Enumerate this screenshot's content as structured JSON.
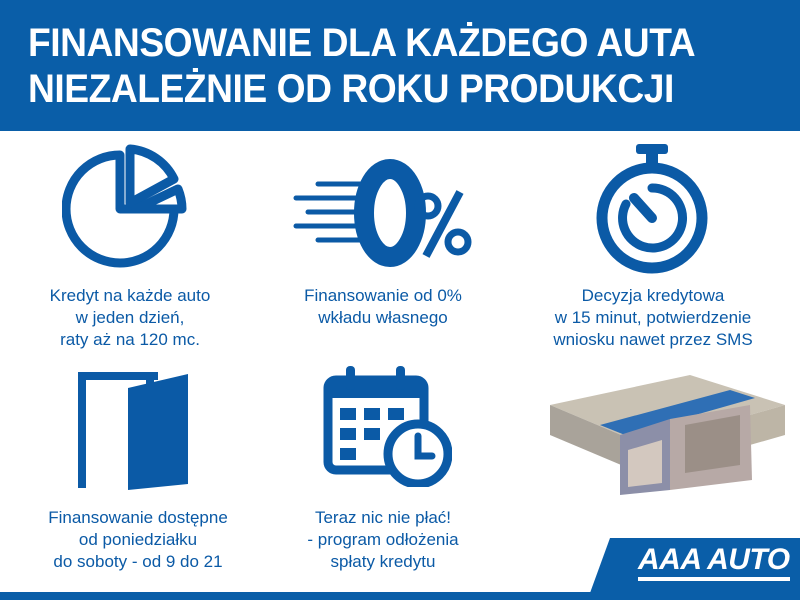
{
  "header": {
    "line1": "FINANSOWANIE DLA KAŻDEGO AUTA",
    "line2": "NIEZALEŻNIE OD ROKU PRODUKCJI"
  },
  "features": [
    {
      "icon": "pie-chart-icon",
      "lines": [
        "Kredyt na każde auto",
        "w jeden dzień,",
        "raty aż na 120 mc."
      ]
    },
    {
      "icon": "zero-percent-icon",
      "lines": [
        "Finansowanie od 0%",
        "wkładu własnego"
      ]
    },
    {
      "icon": "stopwatch-icon",
      "lines": [
        "Decyzja kredytowa",
        "w 15 minut, potwierdzenie",
        "wniosku nawet przez SMS"
      ]
    },
    {
      "icon": "door-icon",
      "lines": [
        "Finansowanie dostępne",
        "od poniedziałku",
        "do soboty - od 9 do 21"
      ]
    },
    {
      "icon": "calendar-clock-icon",
      "lines": [
        "Teraz nic nie płać!",
        "- program odłożenia",
        "spłaty kredytu"
      ]
    }
  ],
  "zero_percent": "0%",
  "logo": "AAA AUTO",
  "colors": {
    "brand": "#0a5ea8"
  }
}
